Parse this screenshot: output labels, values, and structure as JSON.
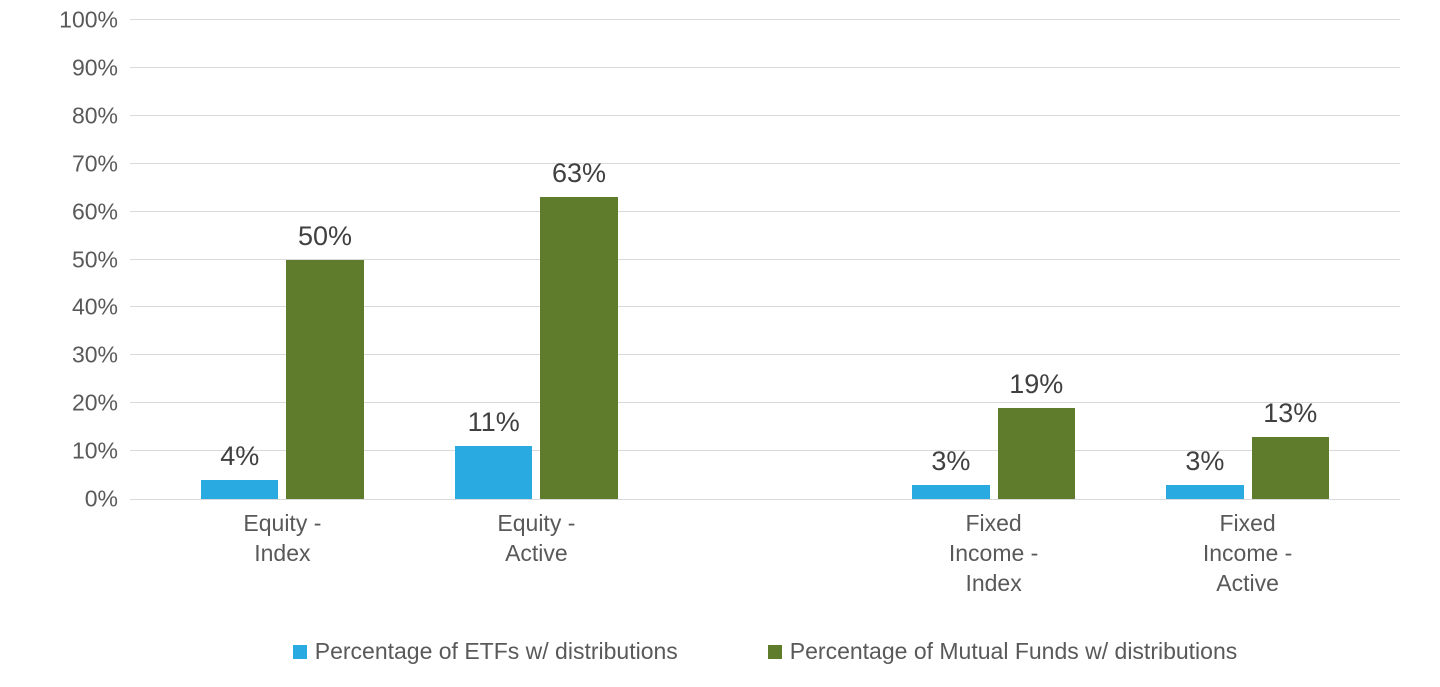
{
  "chart": {
    "type": "bar-grouped",
    "background_color": "#ffffff",
    "text_color": "#595959",
    "data_label_color": "#404040",
    "data_label_fontsize_pt": 20,
    "axis_label_fontsize_pt": 17,
    "legend_fontsize_pt": 17,
    "grid_color": "#d9d9d9",
    "font_family": "Segoe UI, Arial, sans-serif",
    "y_axis": {
      "min": 0,
      "max": 100,
      "tick_step": 10,
      "tick_labels": [
        "0%",
        "10%",
        "20%",
        "30%",
        "40%",
        "50%",
        "60%",
        "70%",
        "80%",
        "90%",
        "100%"
      ]
    },
    "series": [
      {
        "name": "Percentage of ETFs w/ distributions",
        "color": "#29abe2"
      },
      {
        "name": "Percentage of Mutual Funds w/ distributions",
        "color": "#5f7b2c"
      }
    ],
    "layout": {
      "group_width_pct": 16,
      "bar_width_pct_of_group": 38,
      "bar_gap_pct_of_group": 4,
      "group_positions_pct": [
        4,
        24,
        60,
        80
      ]
    },
    "categories": [
      {
        "label": "Equity - Index",
        "values": [
          4,
          50
        ],
        "labels": [
          "4%",
          "50%"
        ]
      },
      {
        "label": "Equity - Active",
        "values": [
          11,
          63
        ],
        "labels": [
          "11%",
          "63%"
        ]
      },
      {
        "label": "Fixed Income -\nIndex",
        "values": [
          3,
          19
        ],
        "labels": [
          "3%",
          "19%"
        ]
      },
      {
        "label": "Fixed Income -\nActive",
        "values": [
          3,
          13
        ],
        "labels": [
          "3%",
          "13%"
        ]
      }
    ]
  }
}
